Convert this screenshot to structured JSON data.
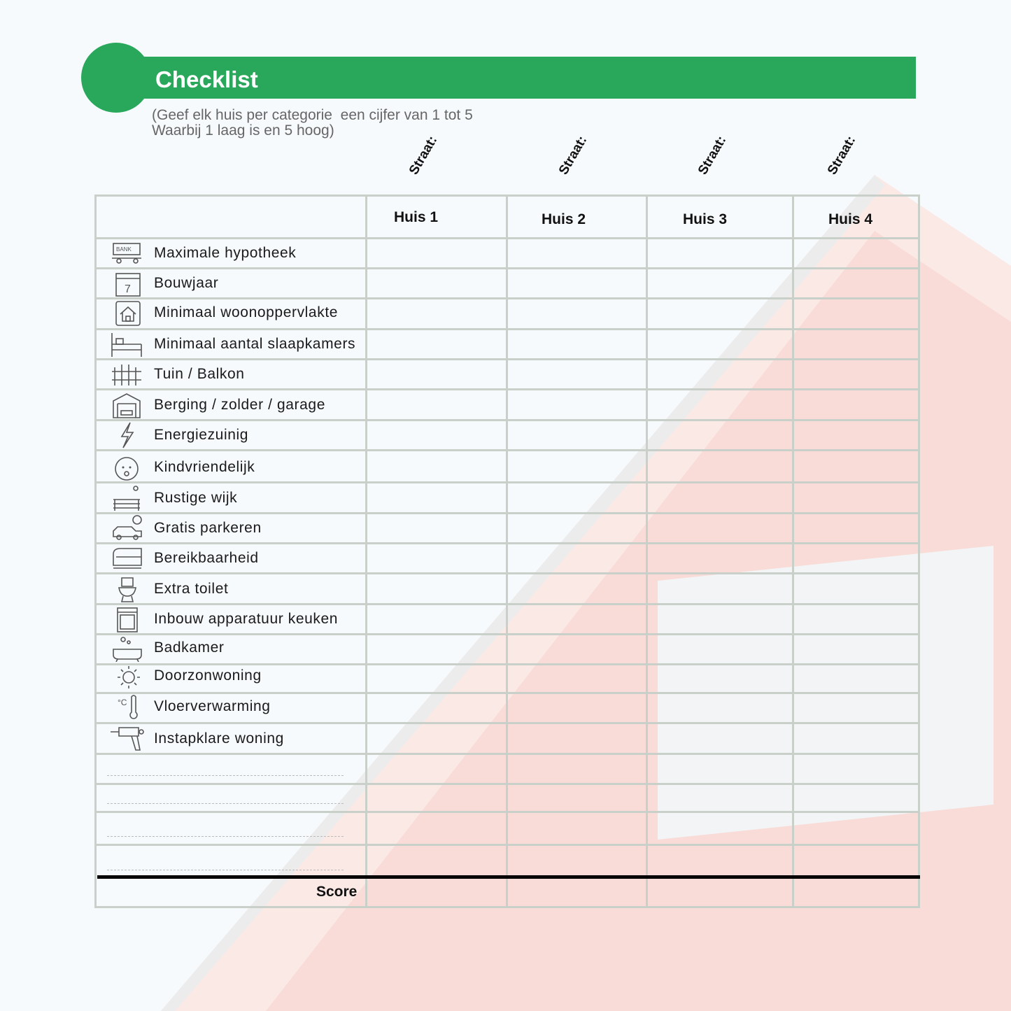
{
  "header": {
    "title": "Checklist",
    "subtitle": "(Geef elk huis per categorie  een cijfer van 1 tot 5\nWaarbij 1 laag is en 5 hoog)",
    "accent_color": "#29a85c"
  },
  "table": {
    "street_labels": [
      "Straat:",
      "Straat:",
      "Straat:",
      "Straat:"
    ],
    "columns": [
      "Huis 1",
      "Huis 2",
      "Huis 3",
      "Huis 4"
    ],
    "rows": [
      {
        "label": "Maximale hypotheek",
        "icon": "bank-truck-icon"
      },
      {
        "label": "Bouwjaar",
        "icon": "calendar-icon"
      },
      {
        "label": "Minimaal woonoppervlakte",
        "icon": "house-icon"
      },
      {
        "label": "Minimaal aantal slaapkamers",
        "icon": "bed-icon"
      },
      {
        "label": "Tuin / Balkon",
        "icon": "fence-icon"
      },
      {
        "label": "Berging / zolder / garage",
        "icon": "garage-icon"
      },
      {
        "label": "Energiezuinig",
        "icon": "lightning-icon"
      },
      {
        "label": "Kindvriendelijk",
        "icon": "baby-icon"
      },
      {
        "label": "Rustige wijk",
        "icon": "bench-icon"
      },
      {
        "label": "Gratis parkeren",
        "icon": "parking-car-icon"
      },
      {
        "label": "Bereikbaarheid",
        "icon": "train-icon"
      },
      {
        "label": "Extra toilet",
        "icon": "toilet-icon"
      },
      {
        "label": "Inbouw apparatuur keuken",
        "icon": "oven-icon"
      },
      {
        "label": "Badkamer",
        "icon": "bathtub-icon"
      },
      {
        "label": "Doorzonwoning",
        "icon": "sun-icon"
      },
      {
        "label": "Vloerverwarming",
        "icon": "thermometer-icon"
      },
      {
        "label": "Instapklare woning",
        "icon": "drill-icon"
      }
    ],
    "score_label": "Score"
  }
}
